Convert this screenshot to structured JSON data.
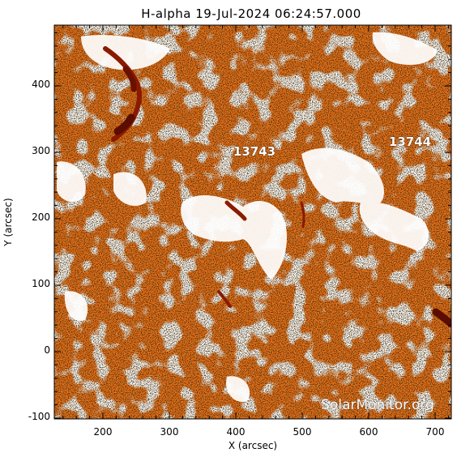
{
  "title": "H-alpha 19-Jul-2024 06:24:57.000",
  "x_axis": {
    "label": "X (arcsec)",
    "ticks": [
      "200",
      "300",
      "400",
      "500",
      "600",
      "700"
    ]
  },
  "y_axis": {
    "label": "Y (arcsec)",
    "ticks": [
      "-100",
      "0",
      "100",
      "200",
      "300",
      "400"
    ]
  },
  "active_regions": [
    {
      "number": "13743",
      "x_arcsec": 430,
      "y_arcsec": 300
    },
    {
      "number": "13744",
      "x_arcsec": 665,
      "y_arcsec": 310
    }
  ],
  "watermark": "SolarMonitor.org",
  "colors": {
    "background": "#ffffff",
    "disk_base": "#f0741e",
    "dark_filament": "#7a1400",
    "bright_plage": "#ffffff"
  }
}
